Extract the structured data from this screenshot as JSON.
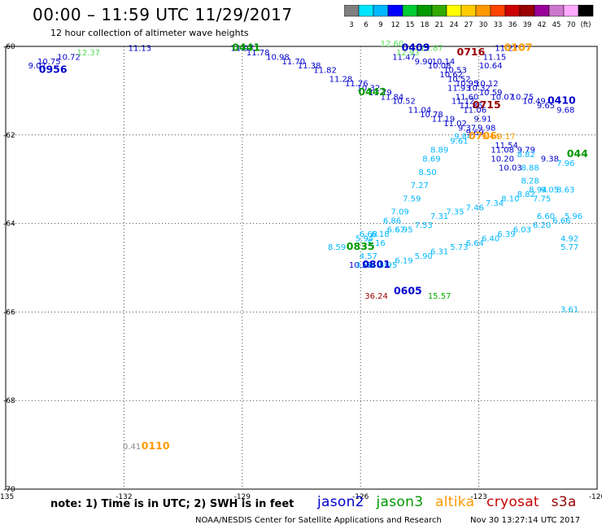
{
  "header": {
    "title": "00:00 – 11:59 UTC 11/29/2017",
    "subtitle": "12 hour collection of altimeter wave heights"
  },
  "colorbar": {
    "labels": [
      "3",
      "6",
      "9",
      "12",
      "15",
      "18",
      "21",
      "24",
      "27",
      "30",
      "33",
      "36",
      "39",
      "42",
      "45",
      "70",
      "(ft)"
    ],
    "colors": [
      "#7f7f7f",
      "#00e5ff",
      "#00b7ff",
      "#0000ff",
      "#00cc33",
      "#009900",
      "#33aa00",
      "#ffff00",
      "#ffcc00",
      "#ff9900",
      "#ff4400",
      "#cc0000",
      "#990000",
      "#990099",
      "#cc77cc",
      "#ffaaff",
      "#000000"
    ]
  },
  "footer": {
    "note": "note:  1) Time is in UTC;  2) SWH is in feet",
    "satellites": [
      {
        "name": "jason2",
        "color": "#0000cc"
      },
      {
        "name": "jason3",
        "color": "#009900"
      },
      {
        "name": "altika",
        "color": "#ff9900"
      },
      {
        "name": "cryosat",
        "color": "#cc0000"
      },
      {
        "name": "s3a",
        "color": "#990000"
      }
    ],
    "credit": "NOAA/NESDIS Center for Satellite Applications and Research",
    "timestamp": "Nov 30 13:27:14 UTC 2017"
  },
  "chart_data": {
    "type": "scatter",
    "title": "00:00 – 11:59 UTC 11/29/2017",
    "subtitle": "12 hour collection of altimeter wave heights",
    "xlim": [
      -135,
      -120
    ],
    "ylim": [
      -70,
      -60
    ],
    "x_ticks": [
      -135,
      -132,
      -129,
      -126,
      -123,
      -120
    ],
    "x_tick_labels": [
      "-135",
      "-132",
      "-129",
      "-126",
      "-123",
      "-120"
    ],
    "y_ticks": [
      -60,
      -62,
      -64,
      -66,
      -68,
      -70
    ],
    "y_tick_labels": [
      "-60",
      "-62",
      "-64",
      "-66",
      "-68",
      "-70"
    ],
    "grid": true,
    "series": [
      {
        "name": "jason2",
        "color": "#0000cc",
        "points": [
          {
            "x": -131.6,
            "y": -60.1,
            "v": "11.13",
            "c": "#0000cc"
          },
          {
            "x": -134.2,
            "y": -60.5,
            "v": "9.07",
            "c": "#0000cc"
          },
          {
            "x": -133.9,
            "y": -60.4,
            "v": "10.75",
            "c": "#0000cc"
          },
          {
            "x": -133.4,
            "y": -60.3,
            "v": "10.72",
            "c": "#0000cc"
          },
          {
            "x": -129.0,
            "y": -60.1,
            "v": "11.97",
            "c": "#0000cc"
          },
          {
            "x": -128.6,
            "y": -60.2,
            "v": "11.78",
            "c": "#0000cc"
          },
          {
            "x": -128.1,
            "y": -60.3,
            "v": "10.98",
            "c": "#0000cc"
          },
          {
            "x": -127.7,
            "y": -60.4,
            "v": "11.70",
            "c": "#0000cc"
          },
          {
            "x": -127.3,
            "y": -60.5,
            "v": "11.38",
            "c": "#0000cc"
          },
          {
            "x": -126.9,
            "y": -60.6,
            "v": "11.82",
            "c": "#0000cc"
          },
          {
            "x": -126.5,
            "y": -60.8,
            "v": "11.28",
            "c": "#0000cc"
          },
          {
            "x": -126.1,
            "y": -60.9,
            "v": "11.76",
            "c": "#0000cc"
          },
          {
            "x": -125.8,
            "y": -61.0,
            "v": "10.32",
            "c": "#0000cc"
          },
          {
            "x": -125.5,
            "y": -61.1,
            "v": "11.79",
            "c": "#0000cc"
          },
          {
            "x": -125.2,
            "y": -61.2,
            "v": "11.84",
            "c": "#0000cc"
          },
          {
            "x": -124.9,
            "y": -61.3,
            "v": "10.52",
            "c": "#0000cc"
          },
          {
            "x": -124.5,
            "y": -61.5,
            "v": "11.04",
            "c": "#0000cc"
          },
          {
            "x": -124.2,
            "y": -61.6,
            "v": "10.78",
            "c": "#0000cc"
          },
          {
            "x": -123.9,
            "y": -61.7,
            "v": "11.19",
            "c": "#0000cc"
          },
          {
            "x": -123.6,
            "y": -61.8,
            "v": "11.02",
            "c": "#0000cc"
          },
          {
            "x": -123.3,
            "y": -61.9,
            "v": "9.37",
            "c": "#0000cc"
          },
          {
            "x": -123.1,
            "y": -62.0,
            "v": "9.69",
            "c": "#0000cc"
          },
          {
            "x": -124.9,
            "y": -60.3,
            "v": "11.47",
            "c": "#0000cc"
          },
          {
            "x": -124.4,
            "y": -60.4,
            "v": "9.90",
            "c": "#0000cc"
          },
          {
            "x": -123.9,
            "y": -60.4,
            "v": "10.14",
            "c": "#0000cc"
          },
          {
            "x": -124.0,
            "y": -60.5,
            "v": "10.08",
            "c": "#0000cc"
          },
          {
            "x": -123.6,
            "y": -60.6,
            "v": "10.53",
            "c": "#0000cc"
          },
          {
            "x": -123.7,
            "y": -60.7,
            "v": "10.62",
            "c": "#0000cc"
          },
          {
            "x": -123.5,
            "y": -60.8,
            "v": "10.52",
            "c": "#0000cc"
          },
          {
            "x": -123.3,
            "y": -60.9,
            "v": "10.95",
            "c": "#0000cc"
          },
          {
            "x": -122.8,
            "y": -60.9,
            "v": "10.12",
            "c": "#0000cc"
          },
          {
            "x": -123.0,
            "y": -61.0,
            "v": "10.32",
            "c": "#0000cc"
          },
          {
            "x": -123.5,
            "y": -61.0,
            "v": "11.93",
            "c": "#0000cc"
          },
          {
            "x": -122.7,
            "y": -61.1,
            "v": "10.59",
            "c": "#0000cc"
          },
          {
            "x": -123.3,
            "y": -61.2,
            "v": "11.60",
            "c": "#0000cc"
          },
          {
            "x": -122.4,
            "y": -61.2,
            "v": "10.07",
            "c": "#0000cc"
          },
          {
            "x": -123.4,
            "y": -61.3,
            "v": "11.12",
            "c": "#0000cc"
          },
          {
            "x": -123.2,
            "y": -61.4,
            "v": "11.86",
            "c": "#0000cc"
          },
          {
            "x": -123.1,
            "y": -61.5,
            "v": "11.06",
            "c": "#0000cc"
          },
          {
            "x": -122.9,
            "y": -61.7,
            "v": "9.91",
            "c": "#0000cc"
          },
          {
            "x": -122.8,
            "y": -61.9,
            "v": "9.98",
            "c": "#0000cc"
          },
          {
            "x": -122.3,
            "y": -60.1,
            "v": "11.27",
            "c": "#0000cc"
          },
          {
            "x": -122.6,
            "y": -60.3,
            "v": "11.15",
            "c": "#0000cc"
          },
          {
            "x": -122.7,
            "y": -60.5,
            "v": "10.64",
            "c": "#0000cc"
          },
          {
            "x": -121.9,
            "y": -61.2,
            "v": "10.75",
            "c": "#0000cc"
          },
          {
            "x": -121.6,
            "y": -61.3,
            "v": "10.49",
            "c": "#0000cc"
          },
          {
            "x": -121.3,
            "y": -61.4,
            "v": "9.65",
            "c": "#0000cc"
          },
          {
            "x": -120.8,
            "y": -61.5,
            "v": "9.68",
            "c": "#0000cc"
          },
          {
            "x": -122.3,
            "y": -62.3,
            "v": "11.54",
            "c": "#0000cc"
          },
          {
            "x": -122.4,
            "y": -62.4,
            "v": "11.08",
            "c": "#0000cc"
          },
          {
            "x": -121.8,
            "y": -62.4,
            "v": "9.79",
            "c": "#0000cc"
          },
          {
            "x": -122.4,
            "y": -62.6,
            "v": "10.20",
            "c": "#0000cc"
          },
          {
            "x": -121.2,
            "y": -62.6,
            "v": "9.38",
            "c": "#0000cc"
          },
          {
            "x": -122.2,
            "y": -62.8,
            "v": "10.03",
            "c": "#0000cc"
          },
          {
            "x": -126.0,
            "y": -65.0,
            "v": "10.58",
            "c": "#0000cc"
          }
        ]
      },
      {
        "name": "jason2-cyan",
        "color": "#00b7ff",
        "points": [
          {
            "x": -123.5,
            "y": -62.2,
            "v": "9.61",
            "c": "#00b7ff"
          },
          {
            "x": -123.4,
            "y": -62.1,
            "v": "9.84",
            "c": "#00b7ff"
          },
          {
            "x": -124.0,
            "y": -62.4,
            "v": "8.89",
            "c": "#00b7ff"
          },
          {
            "x": -124.2,
            "y": -62.6,
            "v": "8.69",
            "c": "#00b7ff"
          },
          {
            "x": -124.3,
            "y": -62.9,
            "v": "8.50",
            "c": "#00b7ff"
          },
          {
            "x": -124.5,
            "y": -63.2,
            "v": "7.27",
            "c": "#00b7ff"
          },
          {
            "x": -124.7,
            "y": -63.5,
            "v": "7.59",
            "c": "#00b7ff"
          },
          {
            "x": -125.0,
            "y": -63.8,
            "v": "7.09",
            "c": "#00b7ff"
          },
          {
            "x": -125.2,
            "y": -64.0,
            "v": "6.86",
            "c": "#00b7ff"
          },
          {
            "x": -125.1,
            "y": -64.2,
            "v": "6.67",
            "c": "#00b7ff"
          },
          {
            "x": -125.5,
            "y": -64.3,
            "v": "6.18",
            "c": "#00b7ff"
          },
          {
            "x": -125.8,
            "y": -64.3,
            "v": "6.68",
            "c": "#00b7ff"
          },
          {
            "x": -125.9,
            "y": -64.4,
            "v": "5.94",
            "c": "#00b7ff"
          },
          {
            "x": -125.6,
            "y": -64.5,
            "v": "5.16",
            "c": "#00b7ff"
          },
          {
            "x": -125.8,
            "y": -64.8,
            "v": "4.57",
            "c": "#00b7ff"
          },
          {
            "x": -125.9,
            "y": -65.0,
            "v": "3.96",
            "c": "#00b7ff"
          },
          {
            "x": -125.5,
            "y": -65.0,
            "v": "4.59",
            "c": "#00b7ff"
          },
          {
            "x": -126.6,
            "y": -64.6,
            "v": "8.59",
            "c": "#00b7ff"
          },
          {
            "x": -124.9,
            "y": -64.2,
            "v": "6.95",
            "c": "#00b7ff"
          },
          {
            "x": -124.4,
            "y": -64.1,
            "v": "7.53",
            "c": "#00b7ff"
          },
          {
            "x": -124.0,
            "y": -63.9,
            "v": "7.31",
            "c": "#00b7ff"
          },
          {
            "x": -123.6,
            "y": -63.8,
            "v": "7.35",
            "c": "#00b7ff"
          },
          {
            "x": -123.1,
            "y": -63.7,
            "v": "7.46",
            "c": "#00b7ff"
          },
          {
            "x": -122.6,
            "y": -63.6,
            "v": "7.34",
            "c": "#00b7ff"
          },
          {
            "x": -122.2,
            "y": -63.5,
            "v": "8.10",
            "c": "#00b7ff"
          },
          {
            "x": -121.8,
            "y": -63.4,
            "v": "8.82",
            "c": "#00b7ff"
          },
          {
            "x": -121.5,
            "y": -63.3,
            "v": "8.94",
            "c": "#00b7ff"
          },
          {
            "x": -121.7,
            "y": -63.1,
            "v": "8.28",
            "c": "#00b7ff"
          },
          {
            "x": -121.7,
            "y": -62.8,
            "v": "8.88",
            "c": "#00b7ff"
          },
          {
            "x": -121.8,
            "y": -62.5,
            "v": "8.82",
            "c": "#00b7ff"
          },
          {
            "x": -121.4,
            "y": -63.5,
            "v": "7.75",
            "c": "#00b7ff"
          },
          {
            "x": -121.3,
            "y": -63.9,
            "v": "6.60",
            "c": "#00b7ff"
          },
          {
            "x": -121.4,
            "y": -64.1,
            "v": "6.20",
            "c": "#00b7ff"
          },
          {
            "x": -121.9,
            "y": -64.2,
            "v": "6.03",
            "c": "#00b7ff"
          },
          {
            "x": -122.3,
            "y": -64.3,
            "v": "6.39",
            "c": "#00b7ff"
          },
          {
            "x": -122.7,
            "y": -64.4,
            "v": "6.40",
            "c": "#00b7ff"
          },
          {
            "x": -123.1,
            "y": -64.5,
            "v": "6.64",
            "c": "#00b7ff"
          },
          {
            "x": -123.5,
            "y": -64.6,
            "v": "5.73",
            "c": "#00b7ff"
          },
          {
            "x": -124.0,
            "y": -64.7,
            "v": "6.31",
            "c": "#00b7ff"
          },
          {
            "x": -124.4,
            "y": -64.8,
            "v": "5.90",
            "c": "#00b7ff"
          },
          {
            "x": -124.9,
            "y": -64.9,
            "v": "6.19",
            "c": "#00b7ff"
          },
          {
            "x": -125.3,
            "y": -65.0,
            "v": "4.95",
            "c": "#00b7ff"
          },
          {
            "x": -120.8,
            "y": -62.7,
            "v": "7.96",
            "c": "#00b7ff"
          },
          {
            "x": -120.8,
            "y": -63.3,
            "v": "8.63",
            "c": "#00b7ff"
          },
          {
            "x": -120.6,
            "y": -63.9,
            "v": "5.96",
            "c": "#00b7ff"
          },
          {
            "x": -120.9,
            "y": -64.0,
            "v": "6.66",
            "c": "#00b7ff"
          },
          {
            "x": -120.7,
            "y": -64.4,
            "v": "4.92",
            "c": "#00b7ff"
          },
          {
            "x": -120.7,
            "y": -64.6,
            "v": "5.77",
            "c": "#00b7ff"
          },
          {
            "x": -120.7,
            "y": -66.0,
            "v": "3.61",
            "c": "#00b7ff"
          },
          {
            "x": -121.2,
            "y": -63.3,
            "v": "9.05",
            "c": "#00b7ff"
          }
        ]
      },
      {
        "name": "jason3",
        "color": "#00cc33",
        "points": [
          {
            "x": -132.9,
            "y": -60.2,
            "v": "12.37",
            "c": "#55dd55"
          },
          {
            "x": -125.2,
            "y": -60.0,
            "v": "12.60",
            "c": "#55dd55"
          },
          {
            "x": -124.8,
            "y": -60.2,
            "v": "12.93",
            "c": "#55dd55"
          },
          {
            "x": -124.2,
            "y": -60.1,
            "v": "12.87",
            "c": "#55dd55"
          },
          {
            "x": -124.0,
            "y": -65.7,
            "v": "15.57",
            "c": "#00aa00"
          }
        ]
      },
      {
        "name": "cryosat",
        "color": "#990000",
        "points": [
          {
            "x": -125.6,
            "y": -65.7,
            "v": "36.24",
            "c": "#990000"
          }
        ]
      },
      {
        "name": "altika",
        "color": "#ff9900",
        "points": [
          {
            "x": -122.7,
            "y": -62.1,
            "v": "9.44",
            "c": "#ff9900"
          },
          {
            "x": -122.3,
            "y": -62.1,
            "v": "9.17",
            "c": "#ff9900"
          },
          {
            "x": -131.8,
            "y": -69.1,
            "v": "0.41",
            "c": "#888888"
          }
        ]
      }
    ],
    "pass_labels": [
      {
        "x": -133.8,
        "y": -60.6,
        "text": "0956",
        "c": "#0000cc"
      },
      {
        "x": -128.9,
        "y": -60.1,
        "text": "0441",
        "c": "#009900"
      },
      {
        "x": -125.7,
        "y": -61.1,
        "text": "0442",
        "c": "#009900"
      },
      {
        "x": -124.6,
        "y": -60.1,
        "text": "0409",
        "c": "#0000cc"
      },
      {
        "x": -123.2,
        "y": -60.2,
        "text": "0716",
        "c": "#990000"
      },
      {
        "x": -122.0,
        "y": -60.1,
        "text": "0107",
        "c": "#ff9900"
      },
      {
        "x": -122.8,
        "y": -61.4,
        "text": "0715",
        "c": "#990000"
      },
      {
        "x": -120.9,
        "y": -61.3,
        "text": "0410",
        "c": "#0000cc"
      },
      {
        "x": -122.9,
        "y": -62.1,
        "text": "0706",
        "c": "#ff9900"
      },
      {
        "x": -120.5,
        "y": -62.5,
        "text": "044",
        "c": "#009900"
      },
      {
        "x": -126.0,
        "y": -64.6,
        "text": "0835",
        "c": "#009900"
      },
      {
        "x": -125.6,
        "y": -65.0,
        "text": "0801",
        "c": "#0000cc"
      },
      {
        "x": -124.8,
        "y": -65.6,
        "text": "0605",
        "c": "#0000cc"
      },
      {
        "x": -131.2,
        "y": -69.1,
        "text": "0110",
        "c": "#ff9900"
      }
    ]
  }
}
